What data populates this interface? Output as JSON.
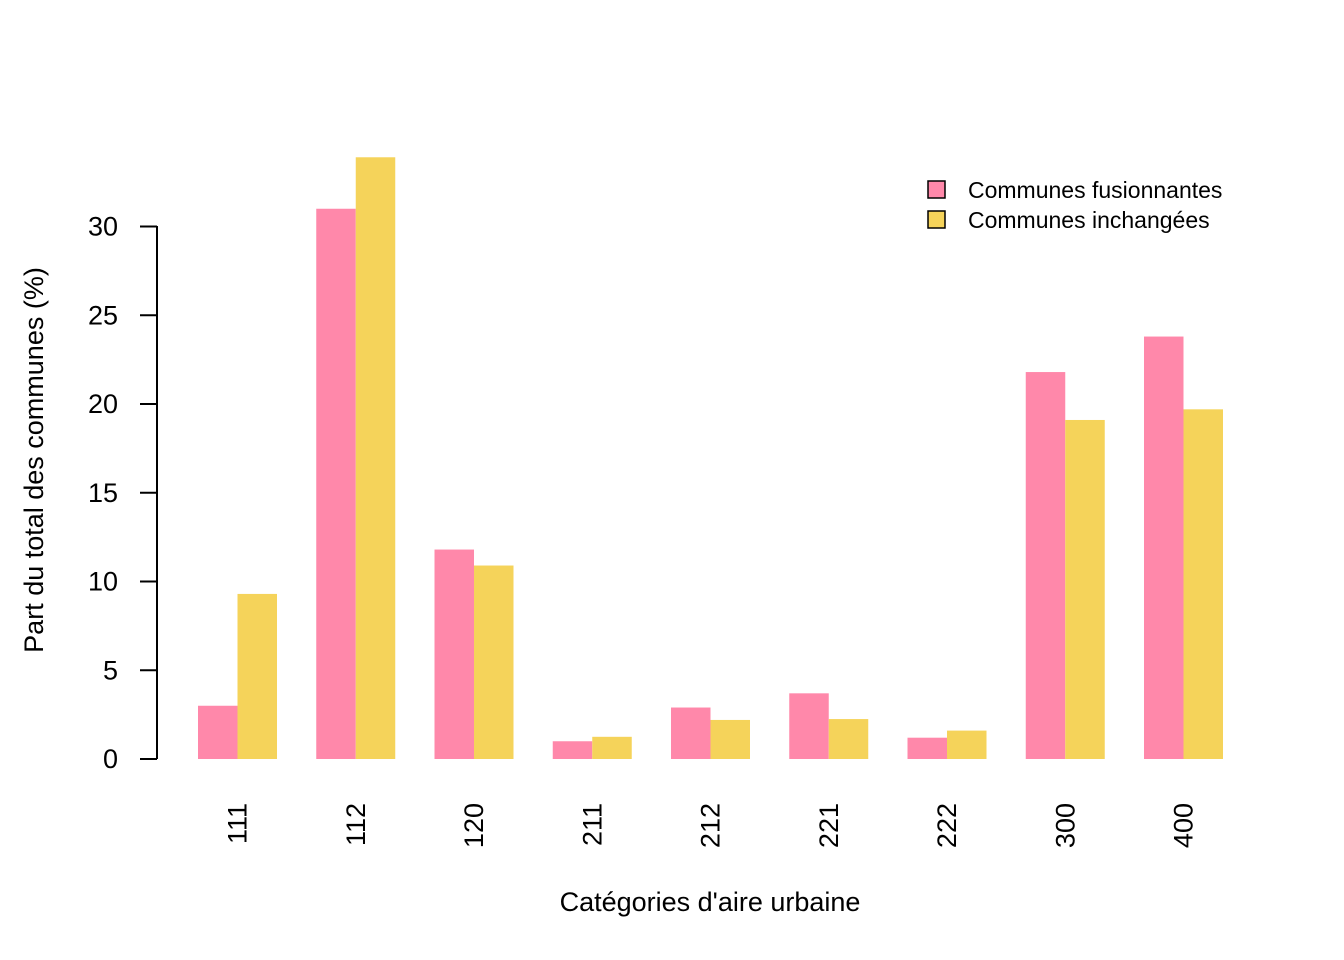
{
  "chart_data": {
    "type": "bar",
    "xlabel": "Catégories d'aire urbaine",
    "ylabel": "Part du total des communes (%)",
    "categories": [
      "111",
      "112",
      "120",
      "211",
      "212",
      "221",
      "222",
      "300",
      "400"
    ],
    "series": [
      {
        "name": "Communes fusionnantes",
        "color": "#FF88AA",
        "values": [
          3.0,
          31.0,
          11.8,
          1.0,
          2.9,
          3.7,
          1.2,
          21.8,
          23.8
        ]
      },
      {
        "name": "Communes inchangées",
        "color": "#F5D35A",
        "values": [
          9.3,
          33.9,
          10.9,
          1.25,
          2.2,
          2.25,
          1.6,
          19.1,
          19.7
        ]
      }
    ],
    "yticks": [
      0,
      5,
      10,
      15,
      20,
      25,
      30
    ],
    "ylim": [
      0,
      34
    ],
    "grid": false,
    "legend_position": "top-right"
  }
}
